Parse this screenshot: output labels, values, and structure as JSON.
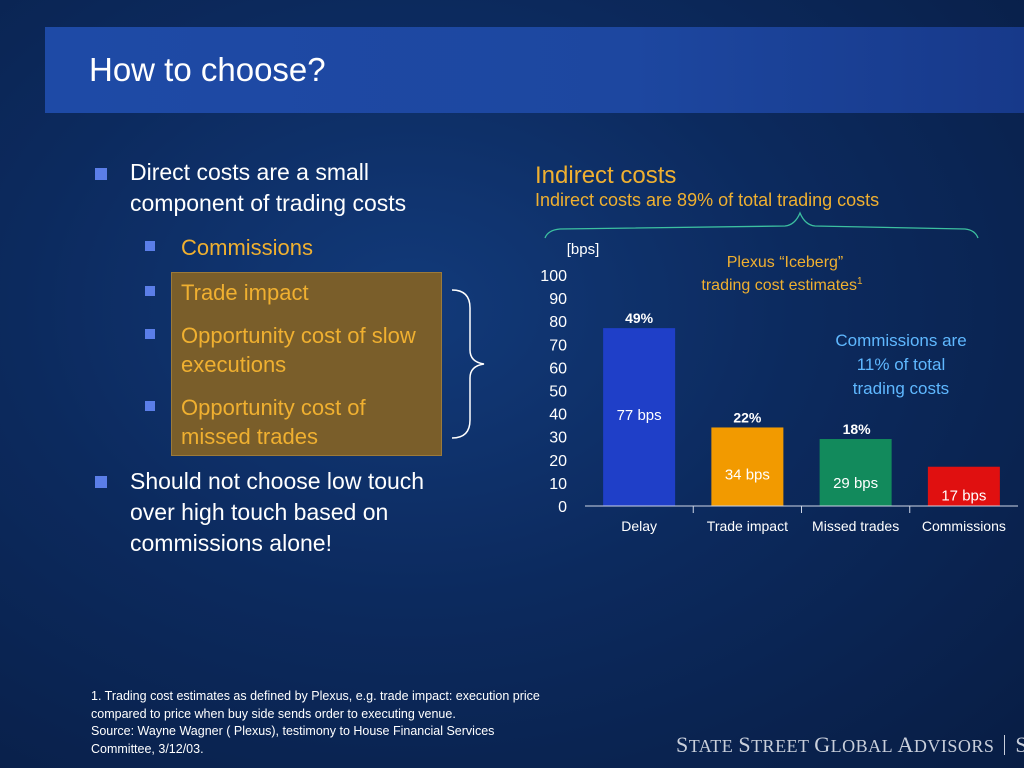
{
  "slide": {
    "title": "How to choose?"
  },
  "bullets": {
    "direct_costs": [
      "Direct costs are a small",
      "component of trading costs"
    ],
    "sub_items": [
      {
        "lines": [
          "Commissions"
        ]
      },
      {
        "lines": [
          "Trade impact"
        ]
      },
      {
        "lines": [
          "Opportunity cost of slow",
          "executions"
        ]
      },
      {
        "lines": [
          "Opportunity cost of",
          "missed trades"
        ]
      }
    ],
    "should_not": [
      "Should not choose low touch",
      "over high touch based on",
      "commissions alone!"
    ]
  },
  "chart_header": {
    "title": "Indirect costs",
    "subtitle": "Indirect costs are 89% of total trading costs"
  },
  "annotations": {
    "plexus": [
      "Plexus “Iceberg”",
      "trading cost estimates"
    ],
    "plexus_sup": "1",
    "commissions_note": [
      "Commissions are",
      "11% of total",
      "trading costs"
    ]
  },
  "chart_data": {
    "type": "bar",
    "ylabel": "[bps]",
    "ylim": [
      0,
      100
    ],
    "yticks": [
      0,
      10,
      20,
      30,
      40,
      50,
      60,
      70,
      80,
      90,
      100
    ],
    "categories": [
      "Delay",
      "Trade impact",
      "Missed trades",
      "Commissions"
    ],
    "values": [
      77,
      34,
      29,
      17
    ],
    "value_labels": [
      "77 bps",
      "34 bps",
      "29 bps",
      "17 bps"
    ],
    "percent_labels": [
      "49%",
      "22%",
      "18%",
      ""
    ],
    "colors": [
      "#1f3fc8",
      "#f29a00",
      "#128a5c",
      "#e01010"
    ],
    "grid": false
  },
  "footnote": {
    "lines": [
      "1. Trading cost estimates as defined by Plexus, e.g. trade impact: execution price",
      "compared to price when buy side sends order to executing venue.",
      "Source: Wayne Wagner ( Plexus), testimony to House Financial Services",
      "Committee, 3/12/03."
    ]
  },
  "logo": {
    "parts": [
      "S",
      "TATE ",
      "S",
      "TREET ",
      "G",
      "LOBAL ",
      "A",
      "DVISORS"
    ],
    "mark": "SSgA"
  }
}
